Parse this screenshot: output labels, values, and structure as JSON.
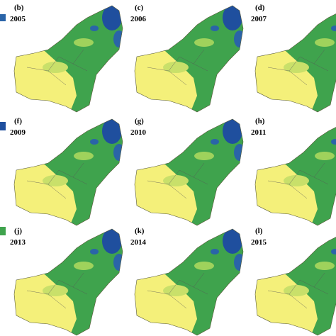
{
  "panels": [
    {
      "letter": "(b)",
      "year": "2005"
    },
    {
      "letter": "(c)",
      "year": "2006"
    },
    {
      "letter": "(d)",
      "year": "2007"
    },
    {
      "letter": "(f)",
      "year": "2009"
    },
    {
      "letter": "(g)",
      "year": "2010"
    },
    {
      "letter": "(h)",
      "year": "2011"
    },
    {
      "letter": "(j)",
      "year": "2013"
    },
    {
      "letter": "(k)",
      "year": "2014"
    },
    {
      "letter": "(l)",
      "year": "2015"
    }
  ]
}
